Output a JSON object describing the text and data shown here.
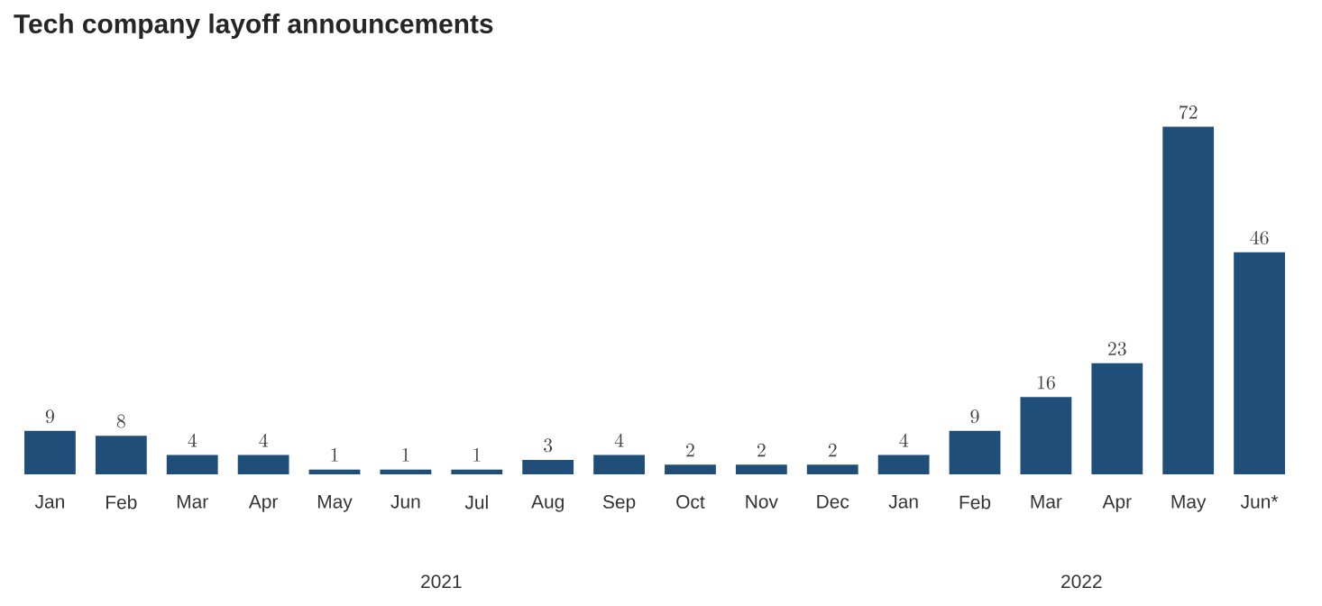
{
  "chart_data": {
    "type": "bar",
    "title": "Tech company layoff announcements",
    "categories": [
      "Jan",
      "Feb",
      "Mar",
      "Apr",
      "May",
      "Jun",
      "Jul",
      "Aug",
      "Sep",
      "Oct",
      "Nov",
      "Dec",
      "Jan",
      "Feb",
      "Mar",
      "Apr",
      "May",
      "Jun*"
    ],
    "values": [
      9,
      8,
      4,
      4,
      1,
      1,
      1,
      3,
      4,
      2,
      2,
      2,
      4,
      9,
      16,
      23,
      72,
      46
    ],
    "color": "#1f4e79",
    "data_labels": true,
    "annotations": [
      "2021",
      "2022"
    ]
  }
}
